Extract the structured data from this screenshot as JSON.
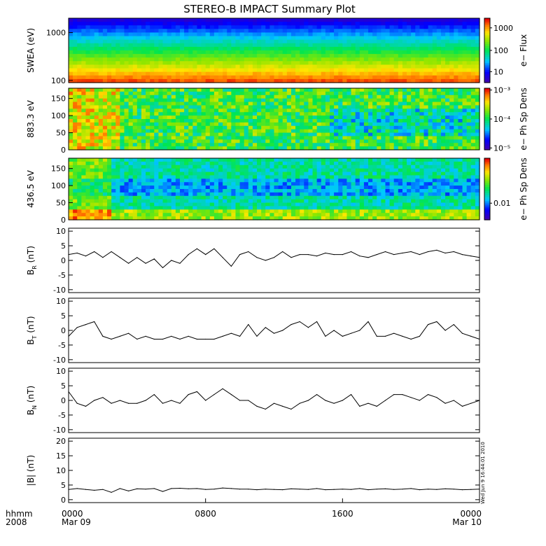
{
  "title": "STEREO-B IMPACT Summary Plot",
  "stamp": "Wed Jun  9 16:44:01 2010",
  "time_axis": {
    "row_labels": [
      "hhmm",
      "2008"
    ],
    "ticks": [
      {
        "hour": 0,
        "label": "0000",
        "sub": "Mar 09"
      },
      {
        "hour": 8,
        "label": "0800",
        "sub": ""
      },
      {
        "hour": 16,
        "label": "1600",
        "sub": ""
      },
      {
        "hour": 24,
        "label": "0000",
        "sub": "Mar 10"
      }
    ],
    "range_hours": [
      0,
      24
    ]
  },
  "spectrograms": [
    {
      "id": "swea",
      "ylabel": "SWEA (eV)",
      "yscale": "log",
      "yrange": [
        90,
        2000
      ],
      "yticks": [
        {
          "v": 1000,
          "label": "1000"
        },
        {
          "v": 100,
          "label": "100"
        }
      ],
      "cbar_label": "e− Flux",
      "cbar_ticks": [
        {
          "f": 0.85,
          "label": "1000"
        },
        {
          "f": 0.5,
          "label": "100"
        },
        {
          "f": 0.17,
          "label": "10"
        }
      ]
    },
    {
      "id": "pad883",
      "ylabel": "883.3 eV",
      "yscale": "linear",
      "yrange": [
        0,
        180
      ],
      "yticks": [
        {
          "v": 150,
          "label": "150"
        },
        {
          "v": 100,
          "label": "100"
        },
        {
          "v": 50,
          "label": "50"
        },
        {
          "v": 0,
          "label": "0"
        }
      ],
      "cbar_label": "e− Ph Sp Dens",
      "cbar_ticks": [
        {
          "f": 0.97,
          "label": "10⁻³"
        },
        {
          "f": 0.5,
          "label": "10⁻⁴"
        },
        {
          "f": 0.03,
          "label": "10⁻⁵"
        }
      ]
    },
    {
      "id": "pad436",
      "ylabel": "436.5 eV",
      "yscale": "linear",
      "yrange": [
        0,
        180
      ],
      "yticks": [
        {
          "v": 150,
          "label": "150"
        },
        {
          "v": 100,
          "label": "100"
        },
        {
          "v": 50,
          "label": "50"
        },
        {
          "v": 0,
          "label": "0"
        }
      ],
      "cbar_label": "e− Ph Sp Dens",
      "cbar_ticks": [
        {
          "f": 0.27,
          "label": "0.01"
        }
      ]
    }
  ],
  "chart_data": [
    {
      "type": "line",
      "id": "br",
      "ylabel": "B_R (nT)",
      "ylim": [
        -11,
        11
      ],
      "yticks": [
        10,
        5,
        0,
        -5,
        -10
      ],
      "x_hours": [
        0,
        0.5,
        1,
        1.5,
        2,
        2.5,
        3,
        3.5,
        4,
        4.5,
        5,
        5.5,
        6,
        6.5,
        7,
        7.5,
        8,
        8.5,
        9,
        9.5,
        10,
        10.5,
        11,
        11.5,
        12,
        12.5,
        13,
        13.5,
        14,
        14.5,
        15,
        15.5,
        16,
        16.5,
        17,
        17.5,
        18,
        18.5,
        19,
        19.5,
        20,
        20.5,
        21,
        21.5,
        22,
        22.5,
        23,
        23.5,
        24
      ],
      "values": [
        2,
        2.5,
        1.5,
        3,
        1,
        3,
        1,
        -1,
        1,
        -1,
        0.5,
        -2.5,
        0,
        -1,
        2,
        4,
        2,
        4,
        1,
        -2,
        2,
        3,
        1,
        0,
        1,
        3,
        1,
        2,
        2,
        1.5,
        2.5,
        2,
        2,
        3,
        1.5,
        1,
        2,
        3,
        2,
        2.5,
        3,
        2,
        3,
        3.5,
        2.5,
        3,
        2,
        1.5,
        1
      ]
    },
    {
      "type": "line",
      "id": "bt",
      "ylabel": "B_T (nT)",
      "ylim": [
        -11,
        11
      ],
      "yticks": [
        10,
        5,
        0,
        -5,
        -10
      ],
      "x_hours": [
        0,
        0.5,
        1,
        1.5,
        2,
        2.5,
        3,
        3.5,
        4,
        4.5,
        5,
        5.5,
        6,
        6.5,
        7,
        7.5,
        8,
        8.5,
        9,
        9.5,
        10,
        10.5,
        11,
        11.5,
        12,
        12.5,
        13,
        13.5,
        14,
        14.5,
        15,
        15.5,
        16,
        16.5,
        17,
        17.5,
        18,
        18.5,
        19,
        19.5,
        20,
        20.5,
        21,
        21.5,
        22,
        22.5,
        23,
        23.5,
        24
      ],
      "values": [
        -2,
        1,
        2,
        3,
        -2,
        -3,
        -2,
        -1,
        -3,
        -2,
        -3,
        -3,
        -2,
        -3,
        -2,
        -3,
        -3,
        -3,
        -2,
        -1,
        -2,
        2,
        -2,
        1,
        -1,
        0,
        2,
        3,
        1,
        3,
        -2,
        0,
        -2,
        -1,
        0,
        3,
        -2,
        -2,
        -1,
        -2,
        -3,
        -2,
        2,
        3,
        0,
        2,
        -1,
        -2,
        -3
      ]
    },
    {
      "type": "line",
      "id": "bn",
      "ylabel": "B_N (nT)",
      "ylim": [
        -11,
        11
      ],
      "yticks": [
        10,
        5,
        0,
        -5,
        -10
      ],
      "x_hours": [
        0,
        0.5,
        1,
        1.5,
        2,
        2.5,
        3,
        3.5,
        4,
        4.5,
        5,
        5.5,
        6,
        6.5,
        7,
        7.5,
        8,
        8.5,
        9,
        9.5,
        10,
        10.5,
        11,
        11.5,
        12,
        12.5,
        13,
        13.5,
        14,
        14.5,
        15,
        15.5,
        16,
        16.5,
        17,
        17.5,
        18,
        18.5,
        19,
        19.5,
        20,
        20.5,
        21,
        21.5,
        22,
        22.5,
        23,
        23.5,
        24
      ],
      "values": [
        3,
        -1,
        -2,
        0,
        1,
        -1,
        0,
        -1,
        -1,
        0,
        2,
        -1,
        0,
        -1,
        2,
        3,
        0,
        2,
        4,
        2,
        0,
        0,
        -2,
        -3,
        -1,
        -2,
        -3,
        -1,
        0,
        2,
        0,
        -1,
        0,
        2,
        -2,
        -1,
        -2,
        0,
        2,
        2,
        1,
        0,
        2,
        1,
        -1,
        0,
        -2,
        -1,
        0
      ]
    },
    {
      "type": "line",
      "id": "bmag",
      "ylabel": "|B| (nT)",
      "ylim": [
        -1,
        21
      ],
      "yticks": [
        20,
        15,
        10,
        5,
        0
      ],
      "x_hours": [
        0,
        0.5,
        1,
        1.5,
        2,
        2.5,
        3,
        3.5,
        4,
        4.5,
        5,
        5.5,
        6,
        6.5,
        7,
        7.5,
        8,
        8.5,
        9,
        9.5,
        10,
        10.5,
        11,
        11.5,
        12,
        12.5,
        13,
        13.5,
        14,
        14.5,
        15,
        15.5,
        16,
        16.5,
        17,
        17.5,
        18,
        18.5,
        19,
        19.5,
        20,
        20.5,
        21,
        21.5,
        22,
        22.5,
        23,
        23.5,
        24
      ],
      "values": [
        3.5,
        3.8,
        3.5,
        3.2,
        3.5,
        2.5,
        3.8,
        3,
        3.7,
        3.6,
        3.8,
        2.8,
        3.8,
        3.9,
        3.7,
        3.8,
        3.5,
        3.6,
        4,
        3.8,
        3.6,
        3.6,
        3.4,
        3.6,
        3.5,
        3.4,
        3.7,
        3.6,
        3.5,
        3.8,
        3.4,
        3.5,
        3.6,
        3.5,
        3.8,
        3.4,
        3.6,
        3.7,
        3.5,
        3.6,
        3.8,
        3.4,
        3.6,
        3.5,
        3.7,
        3.6,
        3.4,
        3.5,
        3.6
      ]
    }
  ]
}
